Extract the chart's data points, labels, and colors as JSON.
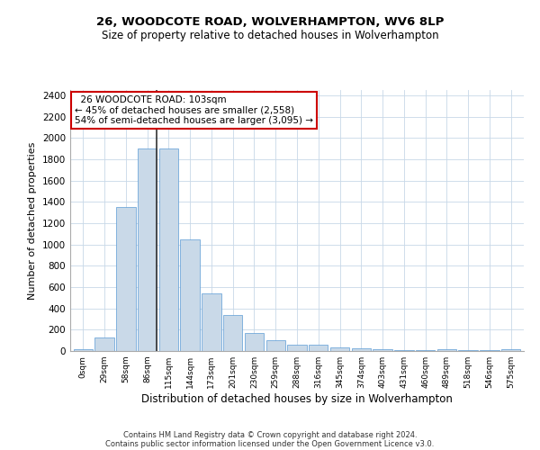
{
  "title1": "26, WOODCOTE ROAD, WOLVERHAMPTON, WV6 8LP",
  "title2": "Size of property relative to detached houses in Wolverhampton",
  "xlabel": "Distribution of detached houses by size in Wolverhampton",
  "ylabel": "Number of detached properties",
  "bar_labels": [
    "0sqm",
    "29sqm",
    "58sqm",
    "86sqm",
    "115sqm",
    "144sqm",
    "173sqm",
    "201sqm",
    "230sqm",
    "259sqm",
    "288sqm",
    "316sqm",
    "345sqm",
    "374sqm",
    "403sqm",
    "431sqm",
    "460sqm",
    "489sqm",
    "518sqm",
    "546sqm",
    "575sqm"
  ],
  "bar_values": [
    15,
    125,
    1350,
    1900,
    1900,
    1050,
    540,
    335,
    170,
    105,
    60,
    55,
    30,
    25,
    20,
    10,
    8,
    15,
    5,
    5,
    15
  ],
  "bar_color": "#c9d9e8",
  "bar_edge_color": "#5b9bd5",
  "property_sqm": 103,
  "property_label": "26 WOODCOTE ROAD: 103sqm",
  "smaller_pct": 45,
  "smaller_count": 2558,
  "larger_pct": 54,
  "larger_count": 3095,
  "annotation_box_color": "#cc0000",
  "vline_color": "#333333",
  "ylim": [
    0,
    2450
  ],
  "yticks": [
    0,
    200,
    400,
    600,
    800,
    1000,
    1200,
    1400,
    1600,
    1800,
    2000,
    2200,
    2400
  ],
  "footer1": "Contains HM Land Registry data © Crown copyright and database right 2024.",
  "footer2": "Contains public sector information licensed under the Open Government Licence v3.0."
}
